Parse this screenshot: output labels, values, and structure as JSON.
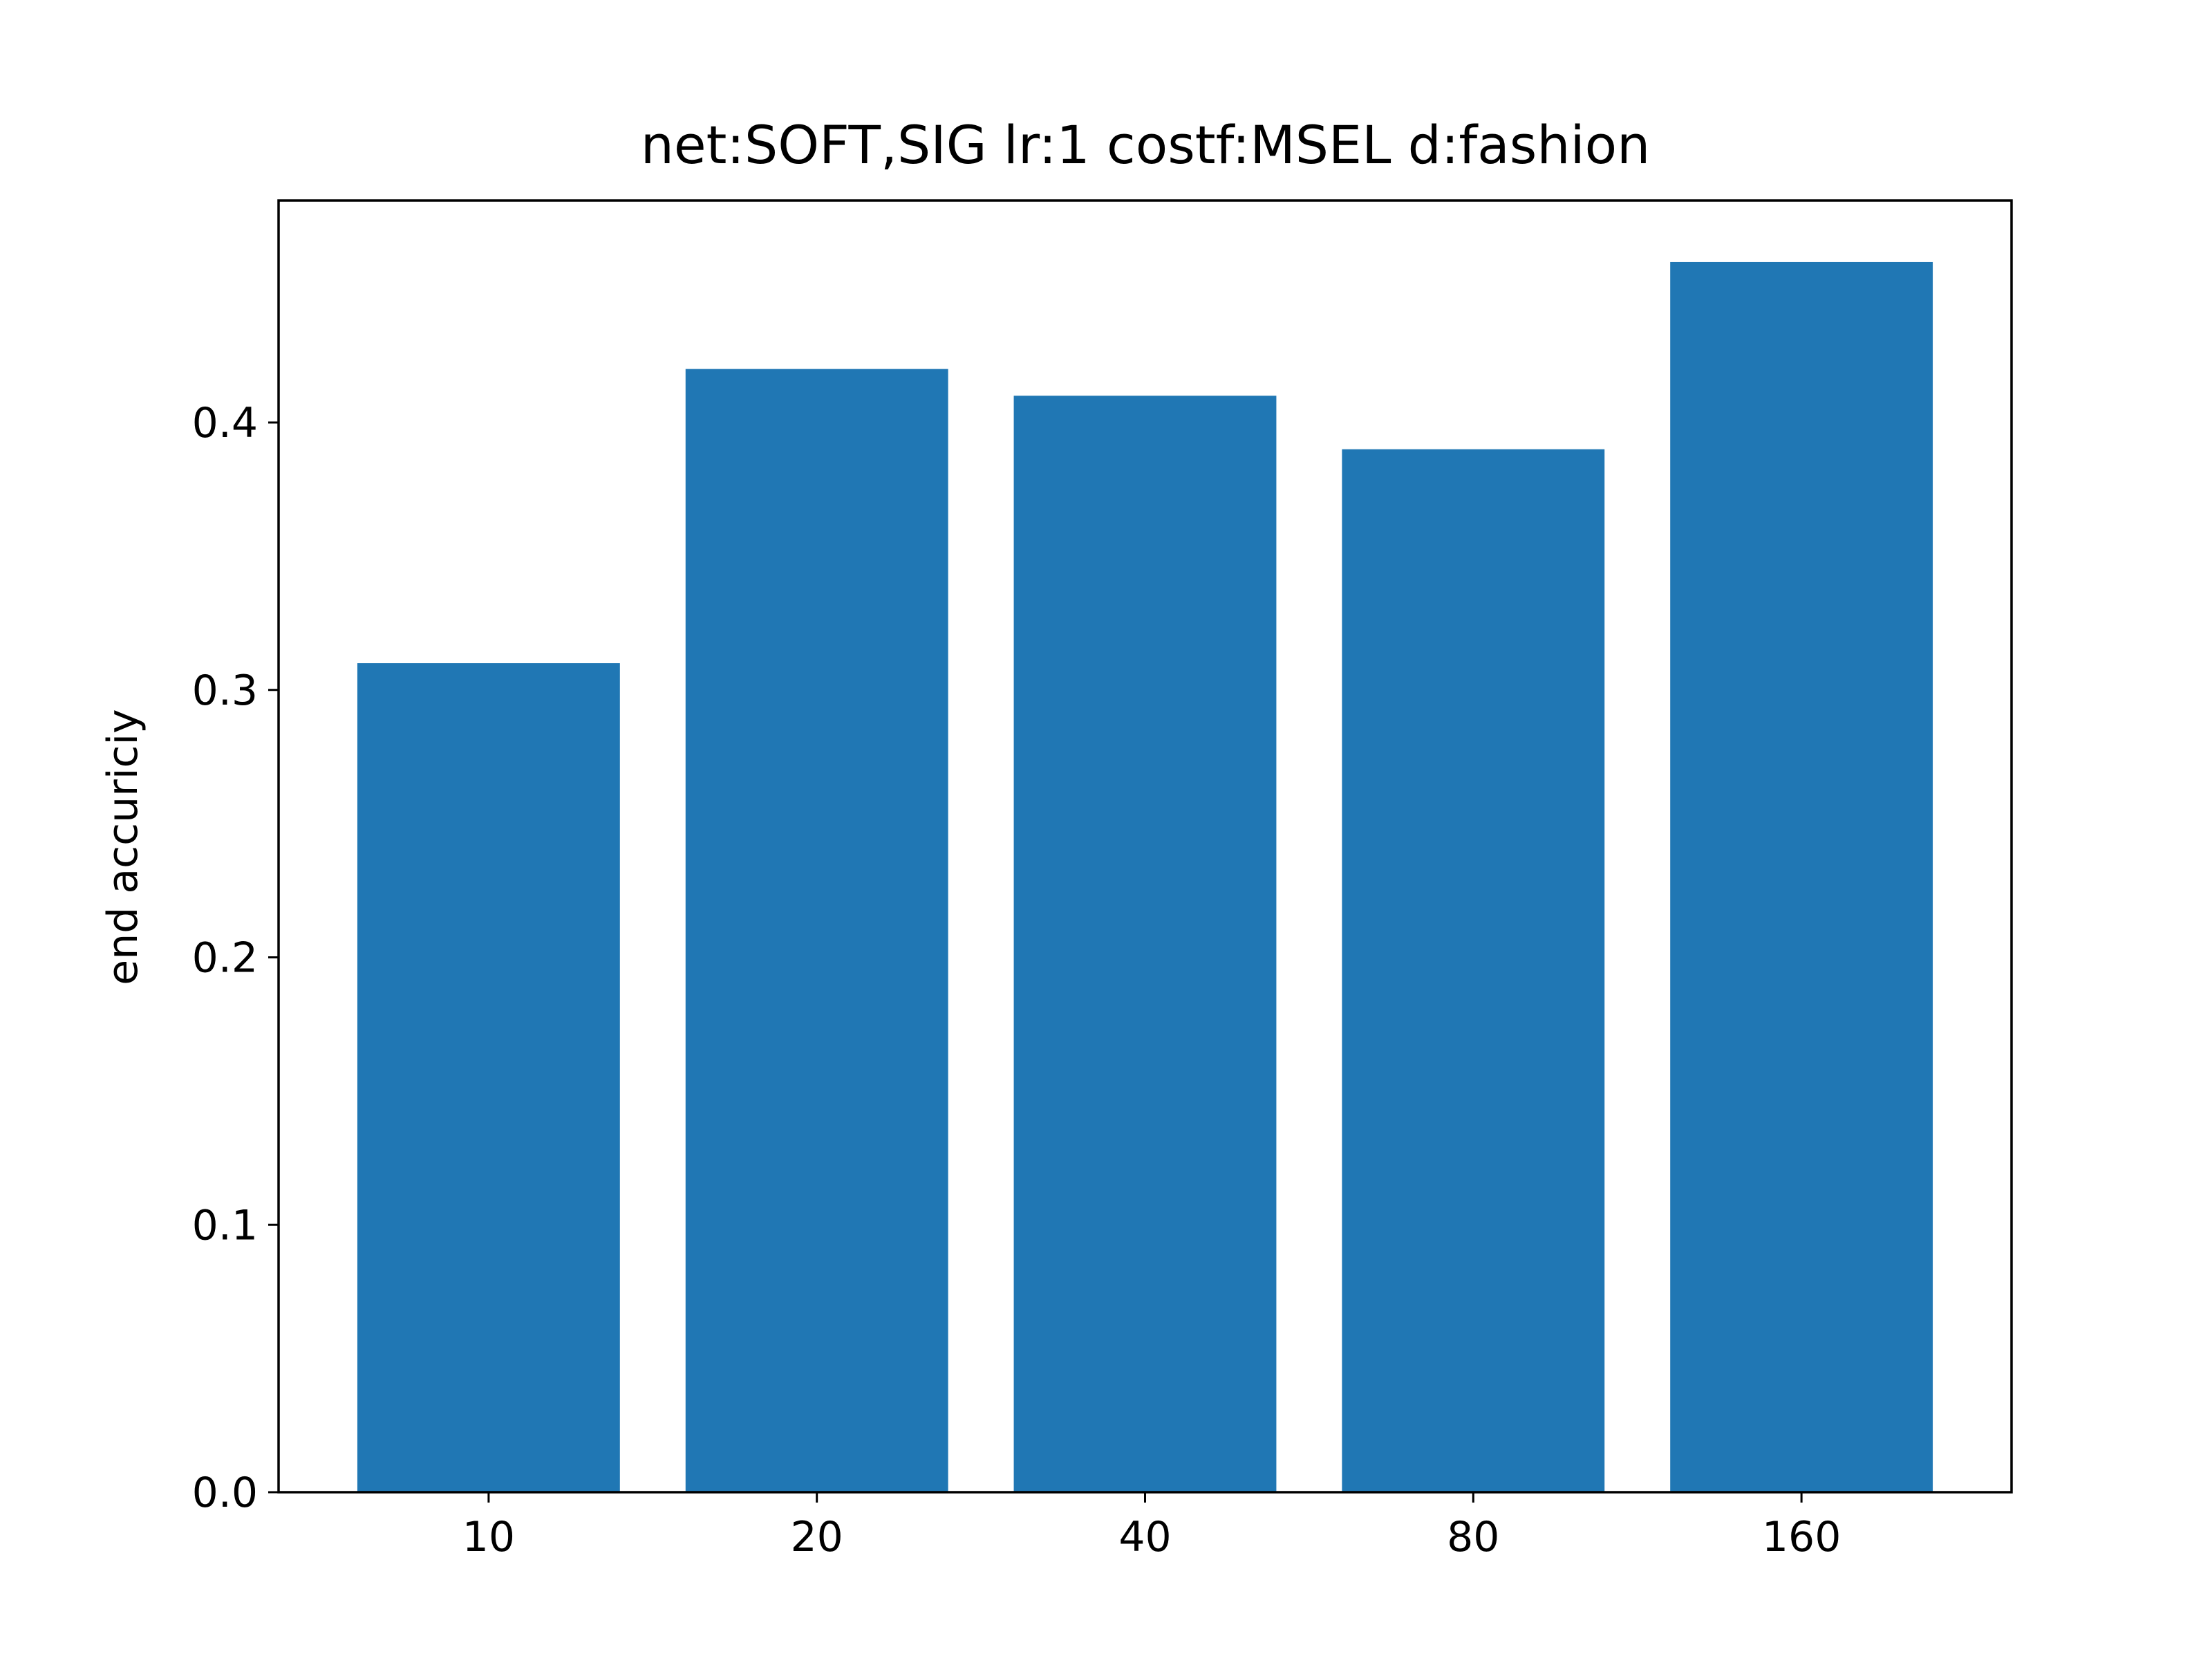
{
  "chart_data": {
    "type": "bar",
    "title": "net:SOFT,SIG lr:1 costf:MSEL d:fashion",
    "xlabel": "",
    "ylabel": "end accuriciy",
    "categories": [
      "10",
      "20",
      "40",
      "80",
      "160"
    ],
    "values": [
      0.31,
      0.42,
      0.41,
      0.39,
      0.46
    ],
    "ylim": [
      0,
      0.483
    ],
    "yticks": [
      {
        "value": 0.0,
        "label": "0.0"
      },
      {
        "value": 0.1,
        "label": "0.1"
      },
      {
        "value": 0.2,
        "label": "0.2"
      },
      {
        "value": 0.3,
        "label": "0.3"
      },
      {
        "value": 0.4,
        "label": "0.4"
      }
    ],
    "bar_color": "#2077b4",
    "grid": false,
    "legend": "none"
  }
}
